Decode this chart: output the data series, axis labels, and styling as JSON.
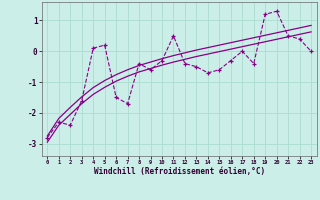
{
  "xlabel": "Windchill (Refroidissement éolien,°C)",
  "bg_color": "#cceee8",
  "line_color": "#880088",
  "grid_color": "#aaddcc",
  "xlim": [
    -0.5,
    23.5
  ],
  "ylim": [
    -3.4,
    1.6
  ],
  "xticks": [
    0,
    1,
    2,
    3,
    4,
    5,
    6,
    7,
    8,
    9,
    10,
    11,
    12,
    13,
    14,
    15,
    16,
    17,
    18,
    19,
    20,
    21,
    22,
    23
  ],
  "yticks": [
    -3,
    -2,
    -1,
    0,
    1
  ],
  "x_data": [
    0,
    1,
    2,
    3,
    4,
    5,
    6,
    7,
    8,
    9,
    10,
    11,
    12,
    13,
    14,
    15,
    16,
    17,
    18,
    19,
    20,
    21,
    22,
    23
  ],
  "y_scatter": [
    -2.8,
    -2.3,
    -2.4,
    -1.6,
    0.1,
    0.2,
    -1.5,
    -1.7,
    -0.4,
    -0.6,
    -0.3,
    0.5,
    -0.4,
    -0.5,
    -0.7,
    -0.6,
    -0.3,
    0.0,
    -0.4,
    1.2,
    1.3,
    0.5,
    0.4,
    0.0
  ],
  "y_line1": [
    -2.75,
    -2.18,
    -1.82,
    -1.48,
    -1.18,
    -0.95,
    -0.76,
    -0.6,
    -0.46,
    -0.35,
    -0.24,
    -0.14,
    -0.05,
    0.04,
    0.12,
    0.2,
    0.28,
    0.36,
    0.44,
    0.52,
    0.6,
    0.68,
    0.76,
    0.84
  ],
  "y_line2": [
    -2.95,
    -2.4,
    -2.05,
    -1.7,
    -1.4,
    -1.17,
    -0.97,
    -0.81,
    -0.67,
    -0.56,
    -0.45,
    -0.35,
    -0.26,
    -0.17,
    -0.09,
    -0.01,
    0.07,
    0.15,
    0.23,
    0.31,
    0.39,
    0.47,
    0.55,
    0.63
  ]
}
